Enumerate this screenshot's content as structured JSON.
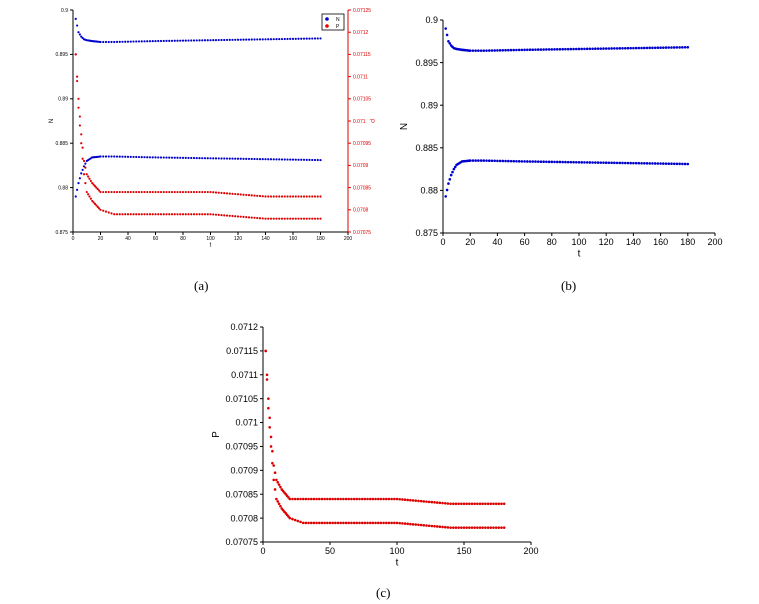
{
  "captions": [
    "(a)",
    "(b)",
    "(c)"
  ],
  "colors": {
    "N": "#0000cc",
    "P": "#dd0000",
    "axis": "#000000"
  },
  "chart_data": [
    {
      "id": "a",
      "type": "scatter",
      "xlabel": "t",
      "ylabel_left": "N",
      "ylabel_right": "P",
      "xlim": [
        0,
        200
      ],
      "ylim_left": [
        0.875,
        0.9
      ],
      "ylim_right": [
        0.07075,
        0.07125
      ],
      "x_ticks": [
        "0",
        "20",
        "40",
        "60",
        "80",
        "100",
        "120",
        "140",
        "160",
        "180",
        "200"
      ],
      "y_ticks_left": [
        "0.875",
        "0.88",
        "0.885",
        "0.89",
        "0.895",
        "0.9"
      ],
      "y_ticks_right": [
        "0.07075",
        "0.0708",
        "0.07085",
        "0.0709",
        "0.07095",
        "0.071",
        "0.07105",
        "0.0711",
        "0.07115",
        "0.0712",
        "0.07125"
      ],
      "legend": {
        "position": "top-right",
        "entries": [
          "N",
          "P"
        ]
      },
      "series": [
        {
          "name": "N",
          "axis": "left",
          "x": [
            2,
            4,
            6,
            8,
            10,
            14,
            20,
            30,
            60,
            100,
            140,
            180
          ],
          "values": [
            0.899,
            0.8975,
            0.897,
            0.8967,
            0.8966,
            0.8965,
            0.8964,
            0.8964,
            0.8965,
            0.8966,
            0.8967,
            0.8968
          ]
        },
        {
          "name": "N",
          "axis": "left",
          "x": [
            2,
            4,
            6,
            8,
            10,
            14,
            20,
            30,
            60,
            100,
            140,
            180
          ],
          "values": [
            0.879,
            0.8805,
            0.8816,
            0.8824,
            0.883,
            0.8834,
            0.8835,
            0.8835,
            0.8834,
            0.8833,
            0.8832,
            0.8831
          ]
        },
        {
          "name": "P",
          "axis": "right",
          "x": [
            2,
            4,
            6,
            8,
            10,
            14,
            20,
            30,
            60,
            100,
            140,
            180
          ],
          "values": [
            0.07115,
            0.07105,
            0.07097,
            0.07091,
            0.07088,
            0.07086,
            0.07084,
            0.07084,
            0.07084,
            0.07084,
            0.07083,
            0.07083
          ]
        },
        {
          "name": "P",
          "axis": "right",
          "x": [
            2,
            4,
            6,
            8,
            10,
            14,
            20,
            30,
            60,
            100,
            140,
            180
          ],
          "values": [
            0.07115,
            0.07103,
            0.07095,
            0.07088,
            0.07084,
            0.07082,
            0.0708,
            0.07079,
            0.07079,
            0.07079,
            0.07078,
            0.07078
          ]
        }
      ]
    },
    {
      "id": "b",
      "type": "scatter",
      "xlabel": "t",
      "ylabel": "N",
      "xlim": [
        0,
        200
      ],
      "ylim": [
        0.875,
        0.9
      ],
      "x_ticks": [
        "0",
        "20",
        "40",
        "60",
        "80",
        "100",
        "120",
        "140",
        "160",
        "180",
        "200"
      ],
      "y_ticks": [
        "0.875",
        "0.88",
        "0.885",
        "0.89",
        "0.895",
        "0.9"
      ],
      "series": [
        {
          "name": "N",
          "x": [
            2,
            4,
            6,
            8,
            10,
            14,
            20,
            30,
            60,
            100,
            140,
            180
          ],
          "values": [
            0.899,
            0.8975,
            0.897,
            0.8967,
            0.8966,
            0.8965,
            0.8964,
            0.8964,
            0.8965,
            0.8966,
            0.8967,
            0.8968
          ]
        },
        {
          "name": "N",
          "x": [
            2,
            4,
            6,
            8,
            10,
            14,
            20,
            30,
            60,
            100,
            140,
            180
          ],
          "values": [
            0.8793,
            0.8808,
            0.8818,
            0.8825,
            0.883,
            0.8834,
            0.8835,
            0.8835,
            0.8834,
            0.8833,
            0.8832,
            0.8831
          ]
        }
      ]
    },
    {
      "id": "c",
      "type": "scatter",
      "xlabel": "t",
      "ylabel": "P",
      "xlim": [
        0,
        200
      ],
      "ylim": [
        0.07075,
        0.0712
      ],
      "x_ticks": [
        "0",
        "50",
        "100",
        "150",
        "200"
      ],
      "y_ticks": [
        "0.07075",
        "0.0708",
        "0.07085",
        "0.0709",
        "0.07095",
        "0.071",
        "0.07105",
        "0.0711",
        "0.07115",
        "0.0712"
      ],
      "series": [
        {
          "name": "P",
          "x": [
            2,
            4,
            6,
            8,
            10,
            14,
            20,
            30,
            60,
            100,
            140,
            180
          ],
          "values": [
            0.07115,
            0.07105,
            0.07097,
            0.07091,
            0.07088,
            0.07086,
            0.07084,
            0.07084,
            0.07084,
            0.07084,
            0.07083,
            0.07083
          ]
        },
        {
          "name": "P",
          "x": [
            2,
            4,
            6,
            8,
            10,
            14,
            20,
            30,
            60,
            100,
            140,
            180
          ],
          "values": [
            0.07115,
            0.07103,
            0.07095,
            0.07088,
            0.07084,
            0.07082,
            0.0708,
            0.07079,
            0.07079,
            0.07079,
            0.07078,
            0.07078
          ]
        }
      ]
    }
  ]
}
